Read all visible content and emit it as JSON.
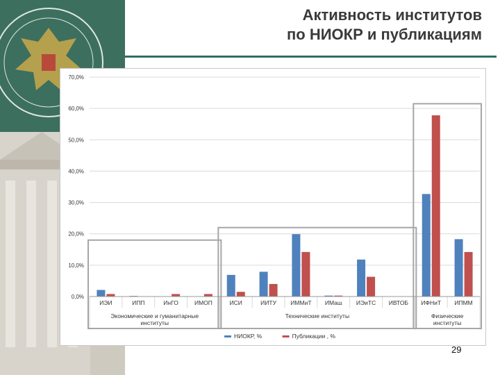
{
  "slide": {
    "title_line1": "Активность институтов",
    "title_line2": "по НИОКР и публикациям",
    "page_number": "29"
  },
  "colors": {
    "panel": "#3d6f5e",
    "title_rule": "#2f6f60",
    "series_niokr": "#4f81bd",
    "series_pub": "#c0504d"
  },
  "chart_data": {
    "type": "bar",
    "ylim": [
      0,
      70
    ],
    "yticks": [
      "0,0%",
      "10,0%",
      "20,0%",
      "30,0%",
      "40,0%",
      "50,0%",
      "60,0%",
      "70,0%"
    ],
    "categories": [
      "ИЭИ",
      "ИПП",
      "ИнГО",
      "ИМОП",
      "ИСИ",
      "ИИТУ",
      "ИММиТ",
      "ИМаш",
      "ИЭиТС",
      "ИВТОБ",
      "ИФНиТ",
      "ИПММ"
    ],
    "series": [
      {
        "name": "НИОКР, %",
        "color": "#4f81bd",
        "values": [
          2.1,
          0.2,
          0.0,
          0.0,
          6.9,
          7.9,
          19.9,
          0.3,
          11.8,
          0.0,
          32.7,
          18.3
        ]
      },
      {
        "name": "Публикации , %",
        "color": "#c0504d",
        "values": [
          0.8,
          0.1,
          0.8,
          0.8,
          1.5,
          4.0,
          14.2,
          0.3,
          6.3,
          0.0,
          57.8,
          14.2
        ]
      }
    ],
    "groups": [
      {
        "label_lines": [
          "Экономические и гуманитарные",
          "институты"
        ],
        "start": 0,
        "end": 3,
        "highlight_max": 18
      },
      {
        "label_lines": [
          "Технические институты"
        ],
        "start": 4,
        "end": 9,
        "highlight_max": 22
      },
      {
        "label_lines": [
          "Физические",
          "институты"
        ],
        "start": 10,
        "end": 11,
        "highlight_max": 61.5
      }
    ],
    "grid": true,
    "legend_position": "bottom"
  }
}
